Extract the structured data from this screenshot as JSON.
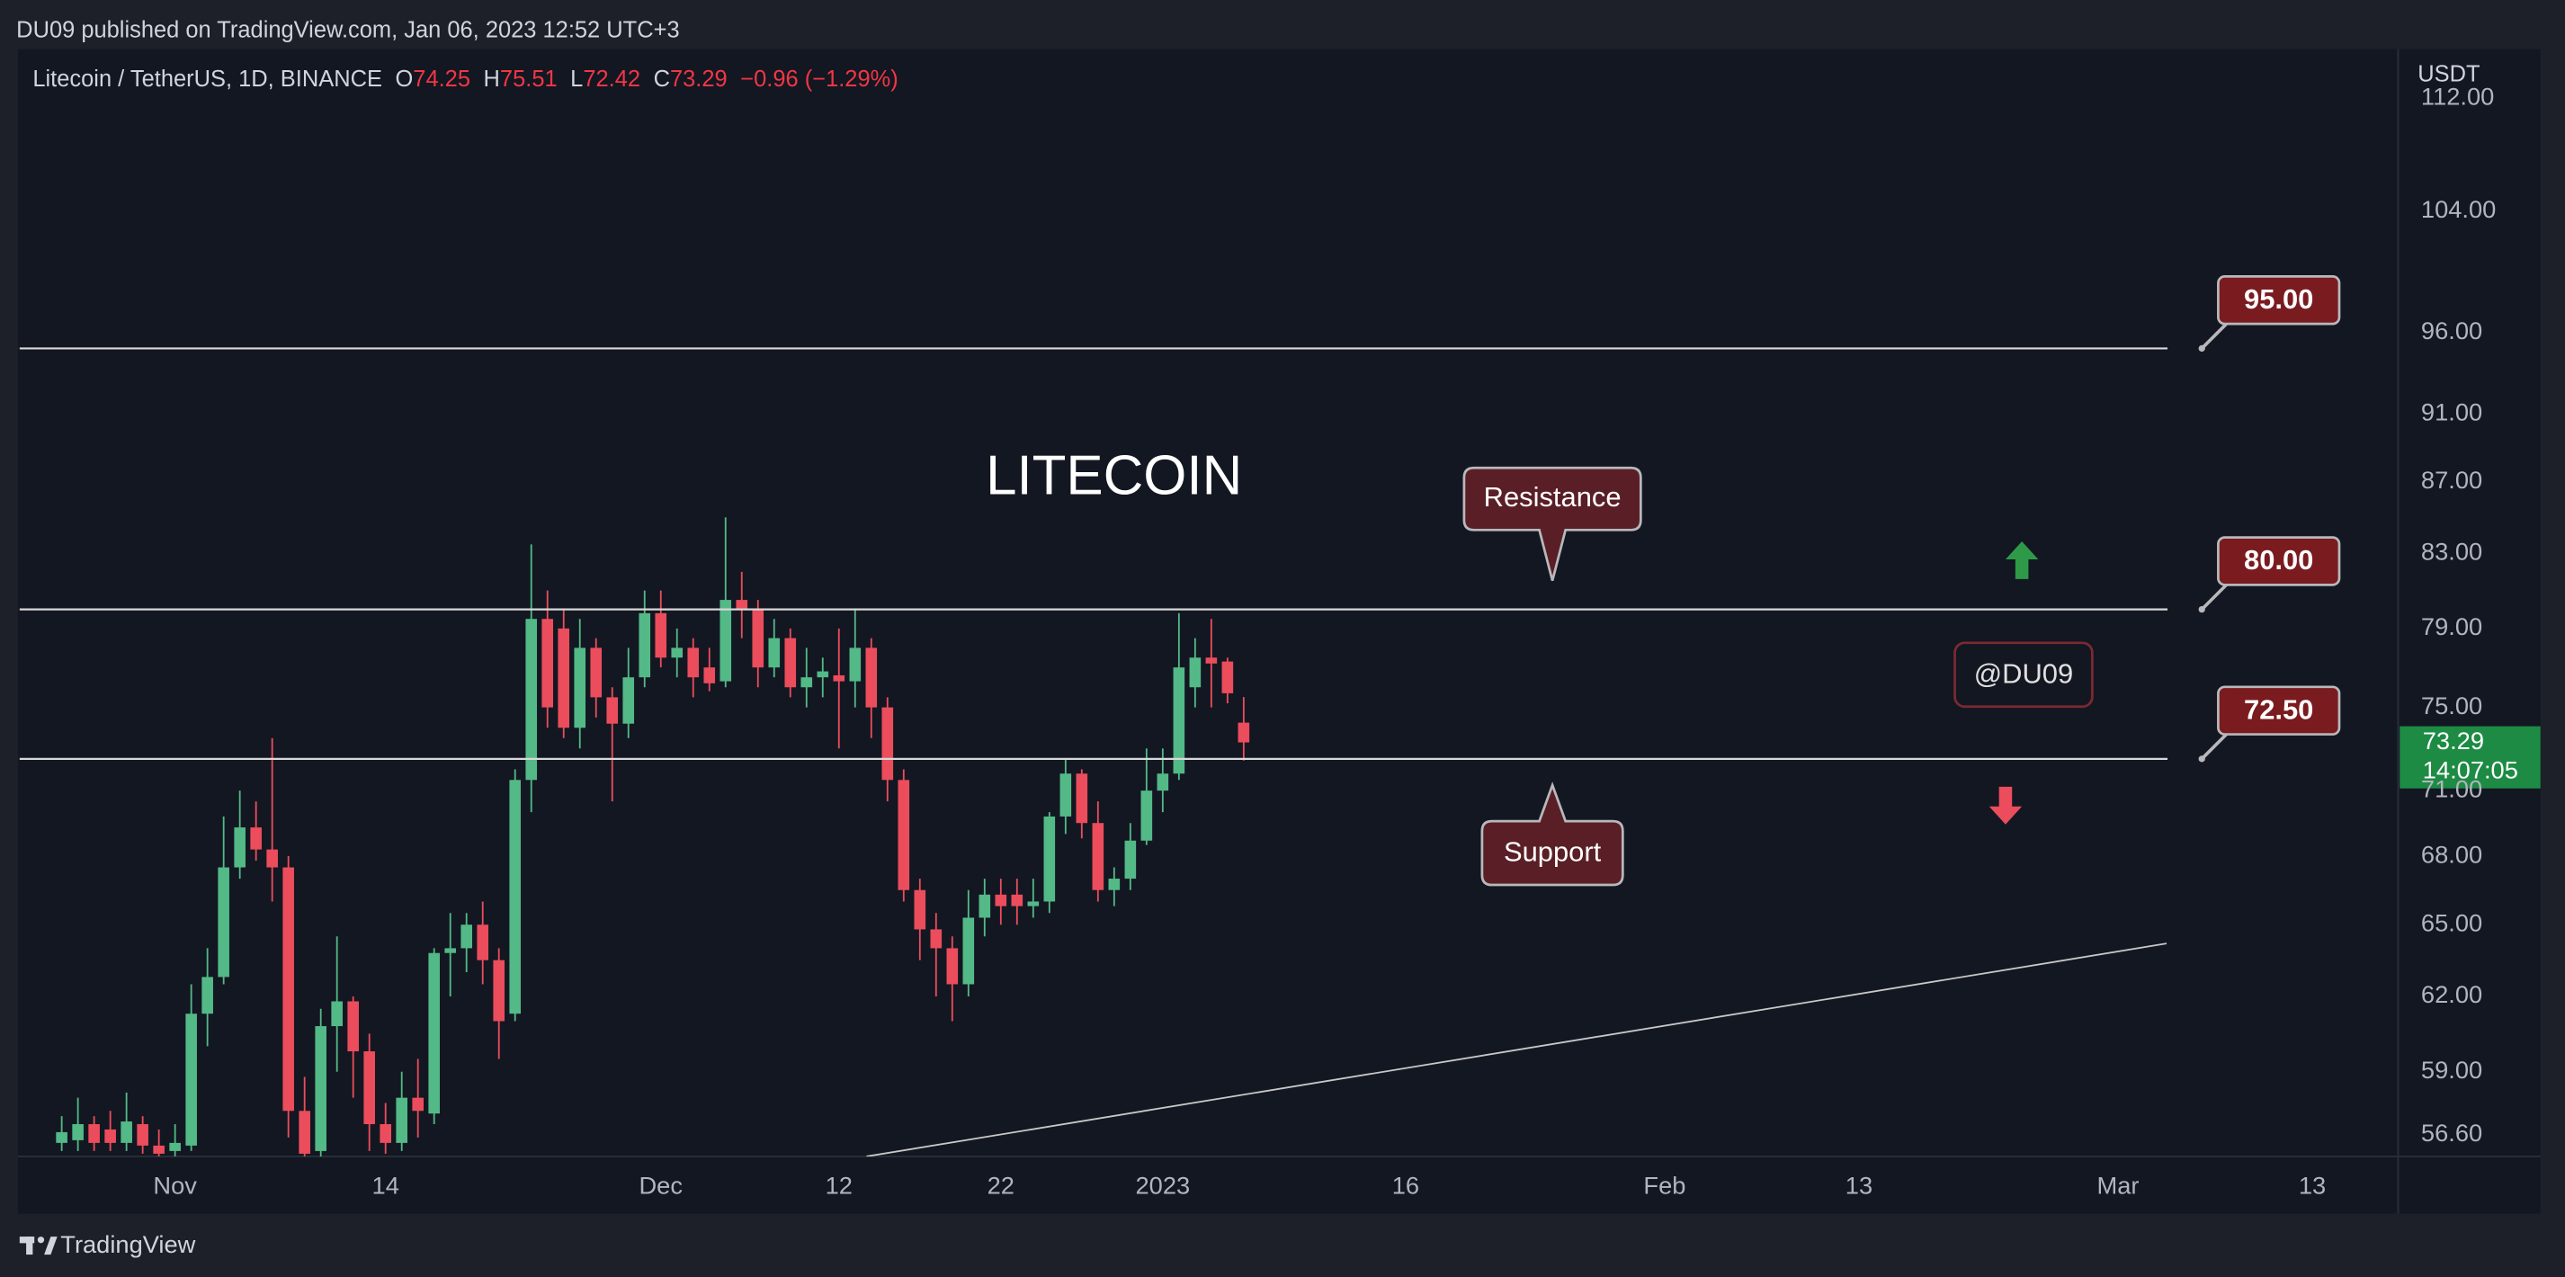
{
  "header": {
    "published": "DU09 published on TradingView.com, Jan 06, 2023 12:52 UTC+3",
    "symbol": "Litecoin / TetherUS, 1D, BINANCE",
    "ohlc_labels": [
      "O",
      "H",
      "L",
      "C"
    ],
    "change": "−0.96 (−1.29%)"
  },
  "chart_data": {
    "type": "candlestick",
    "title": "LITECOIN",
    "currency": "USDT",
    "x": [
      -7,
      -6,
      -5,
      -4,
      -3,
      -2,
      -1,
      0,
      1,
      2,
      3,
      4,
      5,
      6,
      7,
      8,
      9,
      10,
      11,
      12,
      13,
      14,
      15,
      16,
      17,
      18,
      19,
      20,
      21,
      22,
      23,
      24,
      25,
      26,
      27,
      28,
      29,
      30,
      31,
      32,
      33,
      34,
      35,
      36,
      37,
      38,
      39,
      40,
      41,
      42,
      43,
      44,
      45,
      46,
      47,
      48,
      49,
      50,
      51,
      52,
      53,
      54,
      55,
      56,
      57,
      58,
      59,
      60,
      61,
      62,
      63,
      64,
      65,
      66
    ],
    "open": [
      56.3,
      56.4,
      57.0,
      56.8,
      56.3,
      57.0,
      56.2,
      56.0,
      56.2,
      61.3,
      62.8,
      67.5,
      69.3,
      68.3,
      67.5,
      57.5,
      56.0,
      60.8,
      61.8,
      59.8,
      57.0,
      56.3,
      58.0,
      57.4,
      63.8,
      64.0,
      65.0,
      63.5,
      61.3,
      71.5,
      79.5,
      79.0,
      74.0,
      78.0,
      75.5,
      74.2,
      76.5,
      79.8,
      77.5,
      78.0,
      77.0,
      76.3,
      80.5,
      80.0,
      77.0,
      78.5,
      76.0,
      76.5,
      76.6,
      76.3,
      78.0,
      75.0,
      71.5,
      66.5,
      64.8,
      64.0,
      62.5,
      65.3,
      66.3,
      66.3,
      65.8,
      66.0,
      69.8,
      71.8,
      69.5,
      66.5,
      67.0,
      68.7,
      71.0,
      71.8,
      76.0,
      77.5,
      77.3,
      74.25
    ],
    "high": [
      57.3,
      58.0,
      57.3,
      57.5,
      58.2,
      57.3,
      56.8,
      57.0,
      62.5,
      64.0,
      69.8,
      71.0,
      70.5,
      73.5,
      68.0,
      58.8,
      61.5,
      64.5,
      62.0,
      60.5,
      57.8,
      59.0,
      59.5,
      64.0,
      65.5,
      65.5,
      66.0,
      64.0,
      72.0,
      83.5,
      81.0,
      80.0,
      79.5,
      78.5,
      76.0,
      78.0,
      81.0,
      81.0,
      79.0,
      78.5,
      78.0,
      85.0,
      82.0,
      80.5,
      79.5,
      79.0,
      78.0,
      77.5,
      79.0,
      80.0,
      78.5,
      75.5,
      72.0,
      67.0,
      65.5,
      64.5,
      66.5,
      67.0,
      67.0,
      67.0,
      67.0,
      70.0,
      72.5,
      72.0,
      70.5,
      67.5,
      69.5,
      73.0,
      73.0,
      79.8,
      78.5,
      79.5,
      77.5,
      75.51
    ],
    "low": [
      56.0,
      56.0,
      56.0,
      56.0,
      56.0,
      55.9,
      55.8,
      55.8,
      56.0,
      60.0,
      62.5,
      67.0,
      67.8,
      66.0,
      56.5,
      55.8,
      55.8,
      59.0,
      58.0,
      56.0,
      55.9,
      56.0,
      56.5,
      57.0,
      62.0,
      63.0,
      62.5,
      59.5,
      61.0,
      70.0,
      74.0,
      73.5,
      73.0,
      74.5,
      70.5,
      73.5,
      76.0,
      77.0,
      76.5,
      75.5,
      75.8,
      76.0,
      78.5,
      76.0,
      76.5,
      75.5,
      75.0,
      75.5,
      73.0,
      75.0,
      73.5,
      70.5,
      66.0,
      63.5,
      62.0,
      61.0,
      62.0,
      64.5,
      65.0,
      65.0,
      65.3,
      65.5,
      69.0,
      68.8,
      66.0,
      65.8,
      66.5,
      68.5,
      70.0,
      71.5,
      75.0,
      75.0,
      75.2,
      72.42
    ],
    "close": [
      56.7,
      57.0,
      56.3,
      56.3,
      57.1,
      56.2,
      55.9,
      56.3,
      61.3,
      62.8,
      67.5,
      69.3,
      68.3,
      67.5,
      57.5,
      55.9,
      60.8,
      61.8,
      59.8,
      57.0,
      56.3,
      58.0,
      57.5,
      63.8,
      64.0,
      65.0,
      63.5,
      61.0,
      71.5,
      79.5,
      75.0,
      74.0,
      78.0,
      75.5,
      74.2,
      76.5,
      79.8,
      77.5,
      78.0,
      76.5,
      76.2,
      80.5,
      80.0,
      77.0,
      78.5,
      76.0,
      76.5,
      76.8,
      76.3,
      78.0,
      75.0,
      71.5,
      66.5,
      64.8,
      64.0,
      62.5,
      65.3,
      66.3,
      65.8,
      65.8,
      66.0,
      69.8,
      71.8,
      69.5,
      66.5,
      67.0,
      68.7,
      71.0,
      71.8,
      77.0,
      77.5,
      77.2,
      75.7,
      73.29
    ],
    "up_color": "#53b987",
    "down_color": "#eb4d5c",
    "log_scale": true,
    "xlim": [
      -9.6,
      137.3
    ],
    "xticks": [
      {
        "value": 0,
        "label": "Nov"
      },
      {
        "value": 13,
        "label": "14"
      },
      {
        "value": 30,
        "label": "Dec"
      },
      {
        "value": 41,
        "label": "12"
      },
      {
        "value": 51,
        "label": "22"
      },
      {
        "value": 61,
        "label": "2023"
      },
      {
        "value": 76,
        "label": "16"
      },
      {
        "value": 92,
        "label": "Feb"
      },
      {
        "value": 104,
        "label": "13"
      },
      {
        "value": 120,
        "label": "Mar"
      },
      {
        "value": 132,
        "label": "13"
      }
    ],
    "ylim": [
      55.8,
      115.7
    ],
    "yticks": [
      {
        "value": 56.6,
        "label": "56.60"
      },
      {
        "value": 59,
        "label": "59.00"
      },
      {
        "value": 62,
        "label": "62.00"
      },
      {
        "value": 65,
        "label": "65.00"
      },
      {
        "value": 68,
        "label": "68.00"
      },
      {
        "value": 71,
        "label": "71.00"
      },
      {
        "value": 75,
        "label": "75.00"
      },
      {
        "value": 79,
        "label": "79.00"
      },
      {
        "value": 83,
        "label": "83.00"
      },
      {
        "value": 87,
        "label": "87.00"
      },
      {
        "value": 91,
        "label": "91.00"
      },
      {
        "value": 96,
        "label": "96.00"
      },
      {
        "value": 104,
        "label": "104.00"
      },
      {
        "value": 112,
        "label": "112.00"
      }
    ],
    "levels": [
      {
        "value": 95,
        "label": "95.00"
      },
      {
        "value": 80,
        "label": "80.00"
      },
      {
        "value": 72.5,
        "label": "72.50"
      }
    ],
    "trendline": {
      "x": [
        42.7,
        123
      ],
      "y": [
        55.8,
        64.2
      ]
    },
    "annotations": {
      "resistance": "Resistance",
      "support": "Support",
      "watermark": "@DU09"
    },
    "countdown": "14:07:05"
  },
  "footer": {
    "brand": "TradingView"
  }
}
